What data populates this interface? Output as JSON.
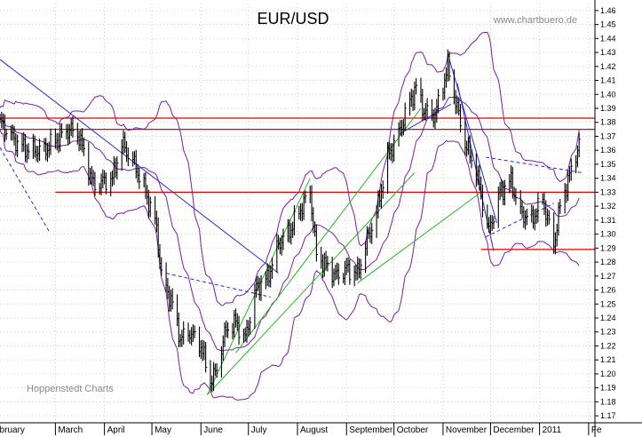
{
  "chart_data": {
    "type": "ohlc",
    "title": "EUR/USD",
    "watermark": "www.chartbuero.de",
    "footer": "Hoppenstedt Charts",
    "y_axis": {
      "side": "right",
      "ylim": [
        1.165,
        1.465
      ],
      "ticks": [
        1.17,
        1.18,
        1.19,
        1.2,
        1.21,
        1.22,
        1.23,
        1.24,
        1.25,
        1.26,
        1.27,
        1.28,
        1.29,
        1.3,
        1.31,
        1.32,
        1.33,
        1.34,
        1.35,
        1.36,
        1.37,
        1.38,
        1.39,
        1.4,
        1.41,
        1.42,
        1.43,
        1.44,
        1.45,
        1.46
      ],
      "tick_labels": [
        "1.17",
        "1.18",
        "1.19",
        "1.20",
        "1.21",
        "1.22",
        "1.23",
        "1.24",
        "1.25",
        "1.26",
        "1.27",
        "1.28",
        "1.29",
        "1.30",
        "1.31",
        "1.32",
        "1.33",
        "1.34",
        "1.35",
        "1.36",
        "1.37",
        "1.38",
        "1.39",
        "1.40",
        "1.41",
        "1.42",
        "1.43",
        "1.44",
        "1.45",
        "1.46"
      ]
    },
    "x_axis": {
      "start": "2010-01-25",
      "end": "2011-02-05",
      "month_labels": [
        {
          "date": "2010-01-25",
          "label": "ebruary"
        },
        {
          "date": "2010-03-01",
          "label": "March"
        },
        {
          "date": "2010-04-01",
          "label": "April"
        },
        {
          "date": "2010-05-01",
          "label": "May"
        },
        {
          "date": "2010-06-01",
          "label": "June"
        },
        {
          "date": "2010-07-01",
          "label": "July"
        },
        {
          "date": "2010-08-01",
          "label": "August"
        },
        {
          "date": "2010-09-01",
          "label": "September"
        },
        {
          "date": "2010-10-01",
          "label": "October"
        },
        {
          "date": "2010-11-01",
          "label": "November"
        },
        {
          "date": "2010-12-01",
          "label": "December"
        },
        {
          "date": "2011-01-01",
          "label": "2011"
        },
        {
          "date": "2011-02-01",
          "label": "Fe"
        }
      ]
    },
    "price_keypoints": [
      [
        "2010-01-25",
        1.38
      ],
      [
        "2010-02-05",
        1.365
      ],
      [
        "2010-02-12",
        1.36
      ],
      [
        "2010-02-22",
        1.36
      ],
      [
        "2010-03-04",
        1.37
      ],
      [
        "2010-03-10",
        1.375
      ],
      [
        "2010-03-16",
        1.37
      ],
      [
        "2010-03-25",
        1.335
      ],
      [
        "2010-04-06",
        1.34
      ],
      [
        "2010-04-12",
        1.365
      ],
      [
        "2010-04-20",
        1.35
      ],
      [
        "2010-04-27",
        1.33
      ],
      [
        "2010-05-04",
        1.305
      ],
      [
        "2010-05-07",
        1.27
      ],
      [
        "2010-05-14",
        1.25
      ],
      [
        "2010-05-19",
        1.225
      ],
      [
        "2010-05-25",
        1.23
      ],
      [
        "2010-06-01",
        1.22
      ],
      [
        "2010-06-07",
        1.195
      ],
      [
        "2010-06-10",
        1.2
      ],
      [
        "2010-06-17",
        1.232
      ],
      [
        "2010-06-23",
        1.237
      ],
      [
        "2010-06-29",
        1.225
      ],
      [
        "2010-07-06",
        1.262
      ],
      [
        "2010-07-13",
        1.268
      ],
      [
        "2010-07-20",
        1.293
      ],
      [
        "2010-07-27",
        1.302
      ],
      [
        "2010-08-03",
        1.318
      ],
      [
        "2010-08-09",
        1.33
      ],
      [
        "2010-08-13",
        1.285
      ],
      [
        "2010-08-20",
        1.276
      ],
      [
        "2010-08-26",
        1.27
      ],
      [
        "2010-09-01",
        1.275
      ],
      [
        "2010-09-08",
        1.272
      ],
      [
        "2010-09-13",
        1.292
      ],
      [
        "2010-09-20",
        1.315
      ],
      [
        "2010-09-27",
        1.355
      ],
      [
        "2010-10-04",
        1.372
      ],
      [
        "2010-10-11",
        1.395
      ],
      [
        "2010-10-15",
        1.405
      ],
      [
        "2010-10-20",
        1.388
      ],
      [
        "2010-10-27",
        1.385
      ],
      [
        "2010-11-04",
        1.42
      ],
      [
        "2010-11-09",
        1.395
      ],
      [
        "2010-11-15",
        1.365
      ],
      [
        "2010-11-22",
        1.345
      ],
      [
        "2010-11-30",
        1.302
      ],
      [
        "2010-12-07",
        1.33
      ],
      [
        "2010-12-14",
        1.338
      ],
      [
        "2010-12-20",
        1.315
      ],
      [
        "2010-12-27",
        1.31
      ],
      [
        "2011-01-03",
        1.325
      ],
      [
        "2011-01-10",
        1.292
      ],
      [
        "2011-01-14",
        1.32
      ],
      [
        "2011-01-19",
        1.338
      ],
      [
        "2011-01-26",
        1.365
      ]
    ],
    "horizontal_lines": [
      {
        "value": 1.383,
        "color": "#e00000",
        "from": "2010-01-25",
        "to": "2011-02-05"
      },
      {
        "value": 1.375,
        "color": "#e00000",
        "from": "2010-01-25",
        "to": "2011-02-05"
      },
      {
        "value": 1.33,
        "color": "#e00000",
        "from": "2010-03-01",
        "to": "2011-02-05"
      },
      {
        "value": 1.289,
        "color": "#e00000",
        "from": "2010-11-25",
        "to": "2011-02-05"
      }
    ],
    "trend_lines": [
      {
        "color": "#2a2ad8",
        "points": [
          [
            "2010-01-25",
            1.425
          ],
          [
            "2010-07-20",
            1.272
          ]
        ]
      },
      {
        "color": "#2a2ad8",
        "points": [
          [
            "2010-11-05",
            1.425
          ],
          [
            "2010-12-05",
            1.308
          ]
        ]
      },
      {
        "color": "#2a2ad8",
        "points": [
          [
            "2010-11-10",
            1.408
          ],
          [
            "2010-12-03",
            1.288
          ]
        ]
      },
      {
        "color": "#2a2ad8",
        "points": [
          [
            "2010-10-05",
            1.372
          ],
          [
            "2010-11-06",
            1.393
          ]
        ]
      },
      {
        "color": "#2a2ad8",
        "dashed": true,
        "points": [
          [
            "2010-01-25",
            1.362
          ],
          [
            "2010-02-25",
            1.302
          ]
        ]
      },
      {
        "color": "#2a2ad8",
        "dashed": true,
        "points": [
          [
            "2010-05-10",
            1.272
          ],
          [
            "2010-07-15",
            1.255
          ]
        ]
      },
      {
        "color": "#2a2ad8",
        "dashed": true,
        "points": [
          [
            "2010-11-28",
            1.355
          ],
          [
            "2011-01-28",
            1.344
          ]
        ]
      },
      {
        "color": "#2a2ad8",
        "dashed": true,
        "points": [
          [
            "2010-11-28",
            1.298
          ],
          [
            "2011-01-10",
            1.322
          ]
        ]
      },
      {
        "color": "#28b428",
        "points": [
          [
            "2010-06-05",
            1.185
          ],
          [
            "2010-10-14",
            1.344
          ]
        ]
      },
      {
        "color": "#28b428",
        "points": [
          [
            "2010-06-05",
            1.185
          ],
          [
            "2010-08-09",
            1.34
          ]
        ]
      },
      {
        "color": "#28b428",
        "points": [
          [
            "2010-06-23",
            1.215
          ],
          [
            "2010-10-18",
            1.39
          ]
        ]
      },
      {
        "color": "#28b428",
        "points": [
          [
            "2010-09-08",
            1.265
          ],
          [
            "2010-11-25",
            1.33
          ]
        ]
      }
    ],
    "bollinger": {
      "color": "#7a1fa2",
      "period_days": 20,
      "width": 2
    }
  }
}
